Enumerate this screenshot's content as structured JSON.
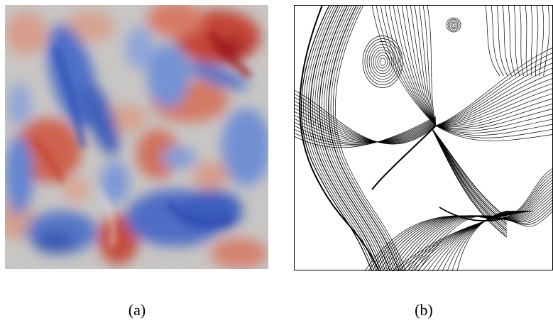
{
  "figure": {
    "panels": [
      {
        "id": "a",
        "caption": "(a)",
        "kind": "scalar-field-heatmap",
        "colormap": {
          "low": "#3b5ec8",
          "mid": "#c9c9c9",
          "high": "#c0281e"
        }
      },
      {
        "id": "b",
        "caption": "(b)",
        "kind": "streamline-plot",
        "line_color": "#000000"
      }
    ]
  }
}
